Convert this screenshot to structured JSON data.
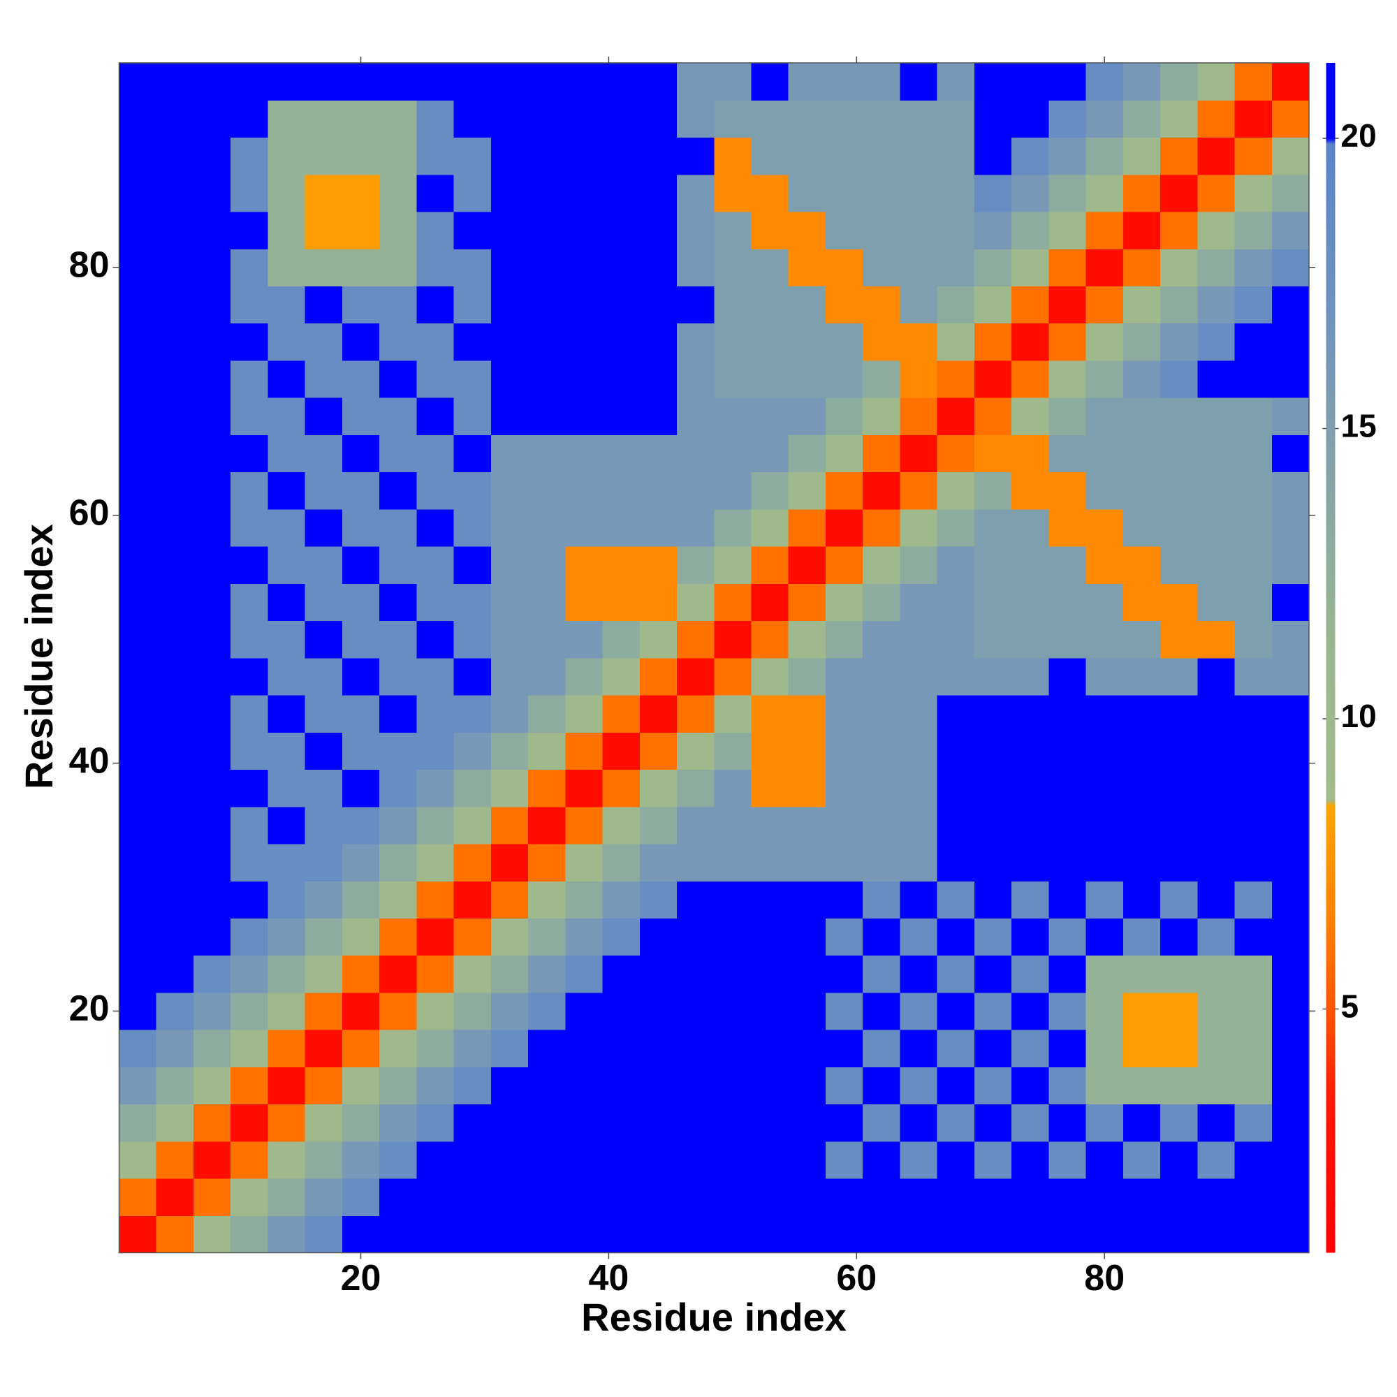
{
  "chart_data": {
    "type": "heatmap",
    "x_label": "Residue index",
    "y_label": "Residue index",
    "x": [
      2,
      5,
      8,
      11,
      14,
      17,
      20,
      23,
      26,
      29,
      32,
      35,
      38,
      41,
      44,
      47,
      50,
      53,
      56,
      59,
      62,
      65,
      68,
      71,
      74,
      77,
      80,
      83,
      86,
      89,
      92,
      95
    ],
    "y": [
      2,
      5,
      8,
      11,
      14,
      17,
      20,
      23,
      26,
      29,
      32,
      35,
      38,
      41,
      44,
      47,
      50,
      53,
      56,
      59,
      62,
      65,
      68,
      71,
      74,
      77,
      80,
      83,
      86,
      89,
      92,
      95
    ],
    "z": [
      [
        2,
        6,
        10,
        13,
        16,
        18,
        20,
        21,
        21,
        21,
        21,
        21,
        21,
        21,
        21,
        21,
        21,
        21,
        21,
        21,
        21,
        21,
        21,
        21,
        21,
        21,
        21,
        21,
        21,
        21,
        21,
        21
      ],
      [
        6,
        2,
        6,
        10,
        13,
        16,
        18,
        20,
        21,
        21,
        21,
        21,
        21,
        21,
        21,
        21,
        21,
        21,
        21,
        21,
        21,
        21,
        21,
        21,
        21,
        21,
        21,
        21,
        21,
        21,
        21,
        21
      ],
      [
        10,
        6,
        2,
        6,
        10,
        13,
        16,
        18,
        20,
        21,
        21,
        21,
        21,
        21,
        21,
        21,
        21,
        21,
        21,
        18,
        21,
        18,
        21,
        18,
        21,
        18,
        21,
        18,
        21,
        18,
        21,
        21
      ],
      [
        13,
        10,
        6,
        2,
        6,
        10,
        13,
        16,
        18,
        20,
        21,
        21,
        21,
        21,
        21,
        21,
        21,
        21,
        21,
        21,
        18,
        21,
        18,
        21,
        18,
        21,
        18,
        21,
        18,
        21,
        18,
        21
      ],
      [
        16,
        13,
        10,
        6,
        2,
        6,
        10,
        13,
        16,
        18,
        20,
        21,
        21,
        21,
        21,
        21,
        21,
        21,
        21,
        18,
        21,
        18,
        21,
        18,
        21,
        18,
        12,
        12,
        12,
        12,
        12,
        21
      ],
      [
        18,
        16,
        13,
        10,
        6,
        2,
        6,
        10,
        13,
        16,
        18,
        20,
        21,
        21,
        21,
        21,
        21,
        21,
        21,
        21,
        18,
        21,
        18,
        21,
        18,
        21,
        12,
        8,
        8,
        12,
        12,
        21
      ],
      [
        20,
        18,
        16,
        13,
        10,
        6,
        2,
        6,
        10,
        13,
        16,
        18,
        20,
        21,
        21,
        21,
        21,
        21,
        21,
        18,
        21,
        18,
        21,
        18,
        21,
        18,
        12,
        8,
        8,
        12,
        12,
        21
      ],
      [
        21,
        20,
        18,
        16,
        13,
        10,
        6,
        2,
        6,
        10,
        13,
        16,
        18,
        20,
        21,
        21,
        21,
        21,
        21,
        21,
        18,
        21,
        18,
        21,
        18,
        21,
        12,
        12,
        12,
        12,
        12,
        21
      ],
      [
        21,
        21,
        20,
        18,
        16,
        13,
        10,
        6,
        2,
        6,
        10,
        13,
        16,
        18,
        20,
        21,
        21,
        21,
        21,
        18,
        21,
        18,
        21,
        18,
        21,
        18,
        21,
        18,
        21,
        18,
        21,
        21
      ],
      [
        21,
        21,
        21,
        20,
        18,
        16,
        13,
        10,
        6,
        2,
        6,
        10,
        13,
        16,
        18,
        20,
        21,
        21,
        21,
        21,
        18,
        21,
        18,
        21,
        18,
        21,
        18,
        21,
        18,
        21,
        18,
        21
      ],
      [
        21,
        21,
        21,
        18,
        18,
        18,
        16,
        13,
        10,
        6,
        2,
        6,
        10,
        13,
        16,
        16,
        16,
        16,
        16,
        16,
        16,
        16,
        21,
        21,
        21,
        21,
        21,
        21,
        21,
        21,
        21,
        21
      ],
      [
        21,
        21,
        21,
        18,
        21,
        18,
        18,
        16,
        13,
        10,
        6,
        2,
        6,
        10,
        13,
        16,
        16,
        16,
        16,
        16,
        16,
        16,
        21,
        21,
        21,
        21,
        21,
        21,
        21,
        21,
        21,
        21
      ],
      [
        21,
        21,
        21,
        21,
        18,
        18,
        20,
        18,
        16,
        13,
        10,
        6,
        2,
        6,
        10,
        13,
        16,
        7,
        7,
        16,
        16,
        16,
        21,
        21,
        21,
        21,
        21,
        21,
        21,
        21,
        21,
        21
      ],
      [
        21,
        21,
        21,
        18,
        18,
        21,
        18,
        18,
        18,
        16,
        13,
        10,
        6,
        2,
        6,
        10,
        13,
        7,
        7,
        16,
        16,
        16,
        21,
        21,
        21,
        21,
        21,
        21,
        21,
        21,
        21,
        21
      ],
      [
        21,
        21,
        21,
        18,
        21,
        18,
        18,
        21,
        18,
        18,
        16,
        13,
        10,
        6,
        2,
        6,
        10,
        7,
        7,
        16,
        16,
        16,
        21,
        21,
        21,
        21,
        21,
        21,
        21,
        21,
        21,
        21
      ],
      [
        21,
        21,
        21,
        21,
        18,
        18,
        21,
        18,
        18,
        20,
        16,
        16,
        13,
        10,
        6,
        2,
        6,
        10,
        13,
        16,
        16,
        16,
        16,
        16,
        16,
        21,
        16,
        16,
        16,
        21,
        16,
        16
      ],
      [
        21,
        21,
        21,
        18,
        18,
        21,
        18,
        18,
        21,
        18,
        16,
        16,
        16,
        13,
        10,
        6,
        2,
        6,
        10,
        13,
        16,
        16,
        16,
        15,
        15,
        15,
        15,
        15,
        7,
        7,
        15,
        16
      ],
      [
        21,
        21,
        21,
        18,
        21,
        18,
        18,
        21,
        18,
        18,
        16,
        16,
        7,
        7,
        7,
        10,
        6,
        2,
        6,
        10,
        13,
        16,
        16,
        15,
        15,
        15,
        15,
        7,
        7,
        15,
        15,
        21
      ],
      [
        21,
        21,
        21,
        21,
        18,
        18,
        21,
        18,
        18,
        21,
        16,
        16,
        7,
        7,
        7,
        13,
        10,
        6,
        2,
        6,
        10,
        13,
        16,
        15,
        15,
        15,
        7,
        7,
        15,
        15,
        15,
        16
      ],
      [
        21,
        21,
        21,
        18,
        18,
        21,
        18,
        18,
        21,
        18,
        16,
        16,
        16,
        16,
        16,
        16,
        13,
        10,
        6,
        2,
        6,
        10,
        13,
        15,
        15,
        7,
        7,
        15,
        15,
        15,
        15,
        16
      ],
      [
        21,
        21,
        21,
        18,
        21,
        18,
        18,
        21,
        18,
        18,
        16,
        16,
        16,
        16,
        16,
        16,
        16,
        13,
        10,
        6,
        2,
        6,
        10,
        13,
        7,
        7,
        15,
        15,
        15,
        15,
        15,
        16
      ],
      [
        21,
        21,
        21,
        21,
        18,
        18,
        21,
        18,
        18,
        21,
        16,
        16,
        16,
        16,
        16,
        16,
        16,
        16,
        13,
        10,
        6,
        2,
        6,
        7,
        7,
        15,
        15,
        15,
        15,
        15,
        15,
        21
      ],
      [
        21,
        21,
        21,
        18,
        18,
        21,
        18,
        18,
        21,
        18,
        21,
        21,
        21,
        21,
        21,
        16,
        16,
        16,
        16,
        13,
        10,
        6,
        2,
        6,
        10,
        13,
        15,
        15,
        15,
        15,
        15,
        16
      ],
      [
        21,
        21,
        21,
        18,
        21,
        18,
        18,
        21,
        18,
        18,
        21,
        21,
        21,
        21,
        21,
        16,
        15,
        15,
        15,
        15,
        13,
        7,
        6,
        2,
        6,
        10,
        13,
        16,
        18,
        20,
        21,
        21
      ],
      [
        21,
        21,
        21,
        21,
        18,
        18,
        21,
        18,
        18,
        21,
        21,
        21,
        21,
        21,
        21,
        16,
        15,
        15,
        15,
        15,
        7,
        7,
        10,
        6,
        2,
        6,
        10,
        13,
        16,
        18,
        20,
        21
      ],
      [
        21,
        21,
        21,
        18,
        18,
        21,
        18,
        18,
        21,
        18,
        21,
        21,
        21,
        21,
        21,
        21,
        15,
        15,
        15,
        7,
        7,
        15,
        13,
        10,
        6,
        2,
        6,
        10,
        13,
        16,
        18,
        20
      ],
      [
        21,
        21,
        21,
        18,
        12,
        12,
        12,
        12,
        18,
        18,
        21,
        21,
        21,
        21,
        21,
        16,
        15,
        15,
        7,
        7,
        15,
        15,
        15,
        13,
        10,
        6,
        2,
        6,
        10,
        13,
        16,
        18
      ],
      [
        21,
        21,
        21,
        21,
        12,
        8,
        8,
        12,
        18,
        21,
        21,
        21,
        21,
        21,
        21,
        16,
        15,
        7,
        7,
        15,
        15,
        15,
        15,
        16,
        13,
        10,
        6,
        2,
        6,
        10,
        13,
        16
      ],
      [
        21,
        21,
        21,
        18,
        12,
        8,
        8,
        12,
        21,
        18,
        21,
        21,
        21,
        21,
        21,
        16,
        7,
        7,
        15,
        15,
        15,
        15,
        15,
        18,
        16,
        13,
        10,
        6,
        2,
        6,
        10,
        13
      ],
      [
        21,
        21,
        21,
        18,
        12,
        12,
        12,
        12,
        18,
        18,
        21,
        21,
        21,
        21,
        21,
        21,
        7,
        15,
        15,
        15,
        15,
        15,
        15,
        20,
        18,
        16,
        13,
        10,
        6,
        2,
        6,
        10
      ],
      [
        21,
        21,
        21,
        21,
        12,
        12,
        12,
        12,
        18,
        21,
        21,
        21,
        21,
        21,
        21,
        16,
        15,
        15,
        15,
        15,
        15,
        15,
        15,
        21,
        20,
        18,
        16,
        13,
        10,
        6,
        2,
        6
      ],
      [
        21,
        21,
        21,
        21,
        21,
        21,
        21,
        21,
        21,
        21,
        21,
        21,
        21,
        21,
        21,
        16,
        16,
        21,
        16,
        16,
        16,
        21,
        16,
        21,
        21,
        20,
        18,
        16,
        13,
        10,
        6,
        2
      ]
    ],
    "xlim": [
      0.5,
      96.5
    ],
    "ylim": [
      0.5,
      96.5
    ],
    "xticks": [
      20,
      40,
      60,
      80
    ],
    "yticks": [
      20,
      40,
      60,
      80
    ],
    "zlim": [
      0.8,
      21.3
    ],
    "zticks": [
      5,
      10,
      15,
      20
    ],
    "colorscale": [
      [
        0.8,
        "#ff0000"
      ],
      [
        3.5,
        "#ff1a00"
      ],
      [
        5,
        "#ff5500"
      ],
      [
        6.5,
        "#ff8000"
      ],
      [
        8.5,
        "#ffa500"
      ],
      [
        8.6,
        "#a2bb8a"
      ],
      [
        11,
        "#9cb88e"
      ],
      [
        14,
        "#86a5a6"
      ],
      [
        17,
        "#6f92be"
      ],
      [
        19.9,
        "#5b84c9"
      ],
      [
        20,
        "#0000ff"
      ],
      [
        21.3,
        "#0000ff"
      ]
    ]
  }
}
